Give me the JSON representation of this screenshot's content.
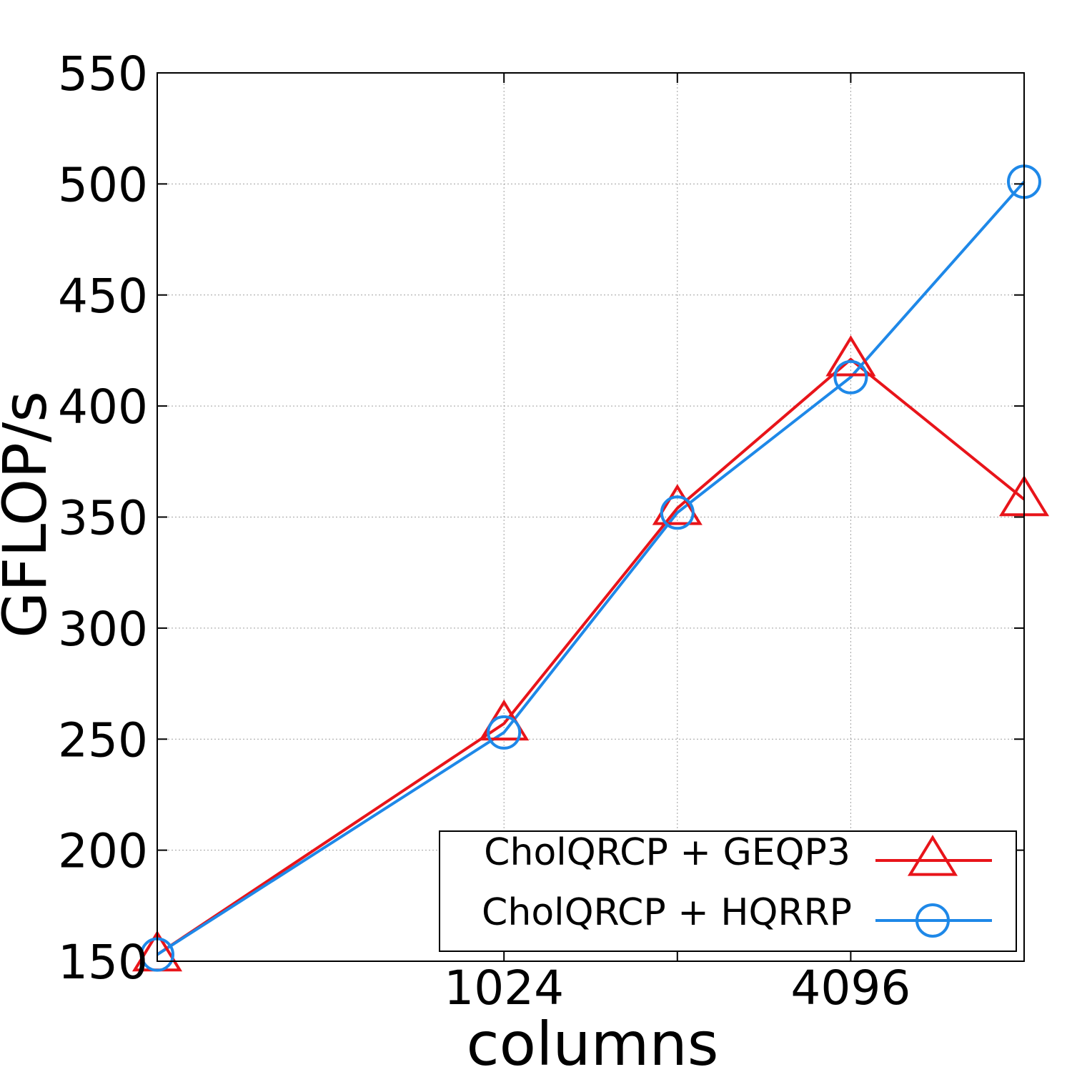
{
  "chart_data": {
    "type": "line",
    "title": "",
    "xlabel": "columns",
    "ylabel": "GFLOP/s",
    "x_scale": "log2",
    "x": [
      256,
      1024,
      2048,
      4096,
      8192
    ],
    "x_ticks_labeled": [
      1024,
      4096
    ],
    "x_ticks_all": [
      1024,
      2048,
      4096
    ],
    "xlim": [
      256,
      8192
    ],
    "ylim": [
      150,
      550
    ],
    "y_ticks": [
      150,
      200,
      250,
      300,
      350,
      400,
      450,
      500,
      550
    ],
    "grid": true,
    "legend_position": "bottom-right",
    "series": [
      {
        "name": "CholQRCP + GEQP3",
        "color": "#e8141a",
        "marker": "triangle",
        "values": [
          153,
          257,
          354,
          421,
          358
        ]
      },
      {
        "name": "CholQRCP + HQRRP",
        "color": "#1e88e8",
        "marker": "circle",
        "values": [
          153,
          253,
          352,
          413,
          501
        ]
      }
    ]
  }
}
